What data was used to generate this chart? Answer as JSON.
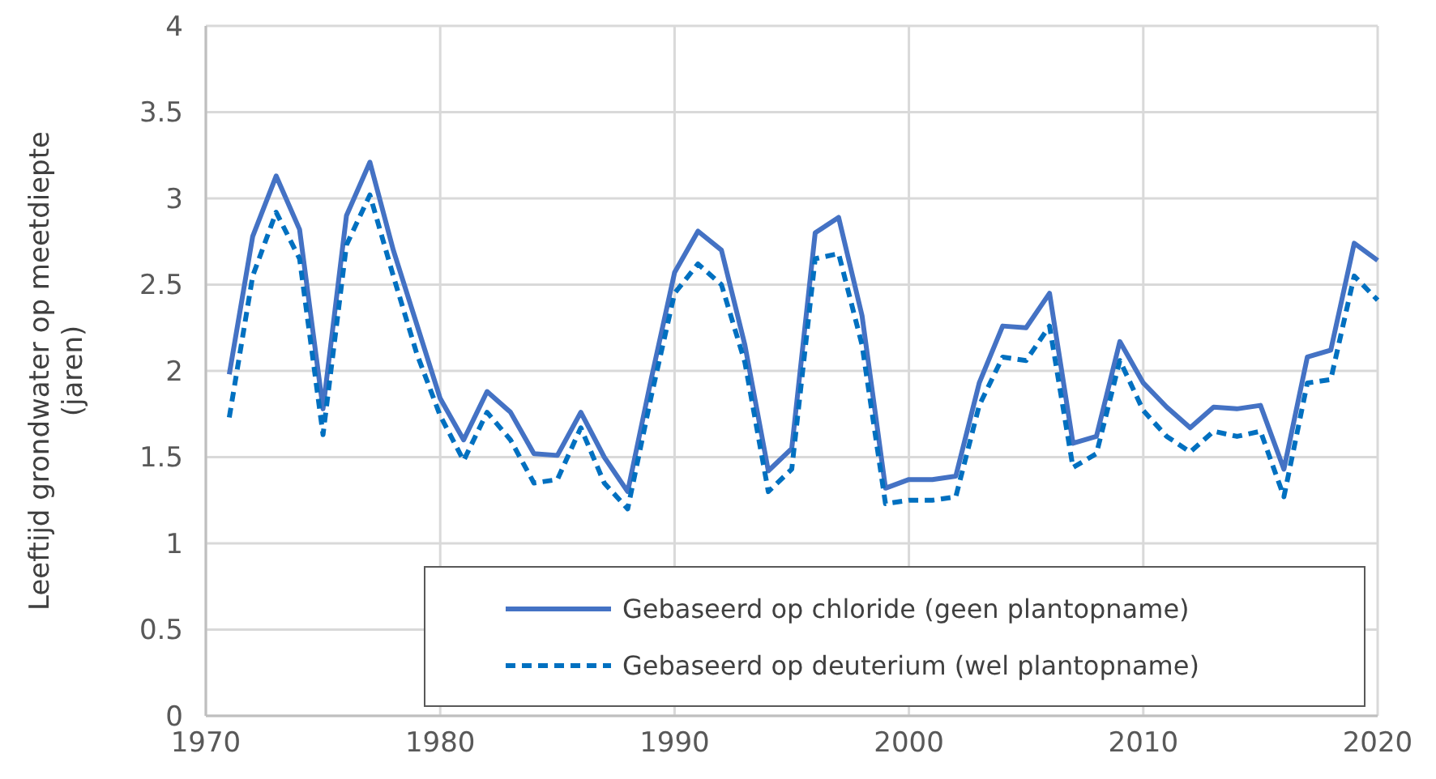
{
  "chart_data": {
    "type": "line",
    "ylabel": "Leeftijd grondwater op meetdiepte (jaren)",
    "x": [
      1971,
      1972,
      1973,
      1974,
      1975,
      1976,
      1977,
      1978,
      1979,
      1980,
      1981,
      1982,
      1983,
      1984,
      1985,
      1986,
      1987,
      1988,
      1989,
      1990,
      1991,
      1992,
      1993,
      1994,
      1995,
      1996,
      1997,
      1998,
      1999,
      2000,
      2001,
      2002,
      2003,
      2004,
      2005,
      2006,
      2007,
      2008,
      2009,
      2010,
      2011,
      2012,
      2013,
      2014,
      2015,
      2016,
      2017,
      2018,
      2019,
      2020
    ],
    "series": [
      {
        "name": "Gebaseerd op chloride (geen plantopname)",
        "color": "#4472c4",
        "line_style": "solid",
        "values": [
          1.98,
          2.78,
          3.13,
          2.82,
          1.78,
          2.9,
          3.21,
          2.7,
          2.27,
          1.84,
          1.6,
          1.88,
          1.76,
          1.52,
          1.51,
          1.76,
          1.5,
          1.3,
          1.95,
          2.57,
          2.81,
          2.7,
          2.15,
          1.42,
          1.55,
          2.8,
          2.89,
          2.32,
          1.32,
          1.37,
          1.37,
          1.39,
          1.93,
          2.26,
          2.25,
          2.45,
          1.58,
          1.62,
          2.17,
          1.93,
          1.79,
          1.67,
          1.79,
          1.78,
          1.8,
          1.43,
          2.08,
          2.12,
          2.74,
          2.64
        ]
      },
      {
        "name": "Gebaseerd op deuterium (wel plantopname)",
        "color": "#0070c0",
        "line_style": "dashed",
        "values": [
          1.73,
          2.55,
          2.92,
          2.65,
          1.63,
          2.73,
          3.02,
          2.55,
          2.1,
          1.74,
          1.48,
          1.76,
          1.6,
          1.35,
          1.37,
          1.67,
          1.35,
          1.2,
          1.85,
          2.45,
          2.62,
          2.5,
          2.05,
          1.3,
          1.43,
          2.65,
          2.68,
          2.15,
          1.23,
          1.25,
          1.25,
          1.27,
          1.8,
          2.08,
          2.06,
          2.26,
          1.44,
          1.52,
          2.06,
          1.77,
          1.62,
          1.53,
          1.65,
          1.62,
          1.65,
          1.27,
          1.93,
          1.95,
          2.55,
          2.41
        ]
      }
    ],
    "xlim": [
      1970,
      2020
    ],
    "xticks": [
      1970,
      1980,
      1990,
      2000,
      2010,
      2020
    ],
    "ylim": [
      0,
      4
    ],
    "yticks": [
      0,
      {
        "value": 0.5,
        "label": "0.5"
      },
      1,
      {
        "value": 1.5,
        "label": "1.5"
      },
      2,
      {
        "value": 2.5,
        "label": "2.5"
      },
      3,
      {
        "value": 3.5,
        "label": "3.5"
      },
      4
    ],
    "grid": true,
    "legend": "bottom right"
  }
}
